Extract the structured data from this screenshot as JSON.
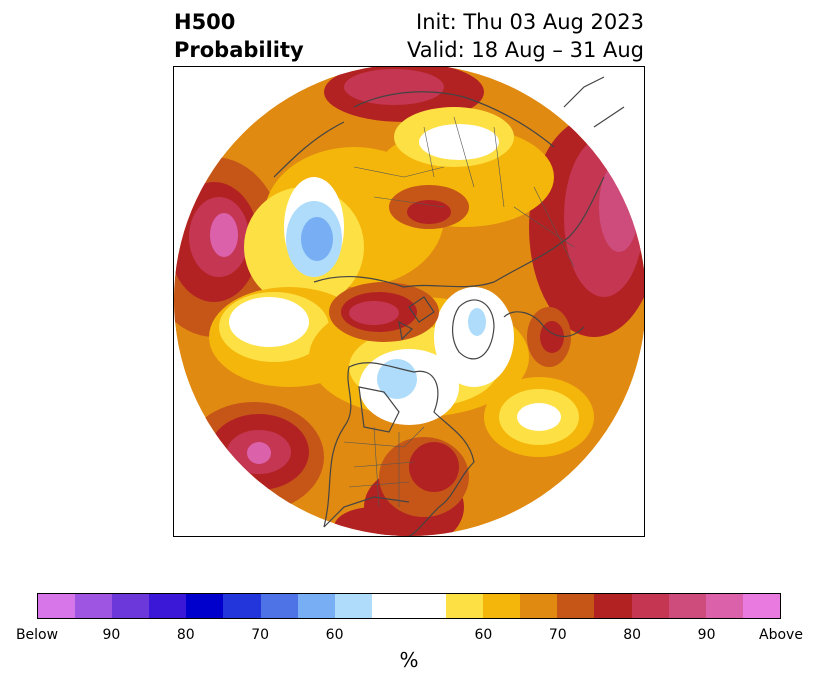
{
  "header": {
    "variable": "H500",
    "product": "Probability",
    "init_label": "Init: Thu 03 Aug 2023",
    "valid_label": "Valid: 18 Aug – 31 Aug"
  },
  "map": {
    "projection": "north-polar-stereographic",
    "background_fill": "#e08a12"
  },
  "colorbar": {
    "unit": "%",
    "colors": [
      "#d676e8",
      "#9e55e2",
      "#6d38da",
      "#3b17d8",
      "#0000cc",
      "#2236dc",
      "#4e73e6",
      "#78aef4",
      "#aedcfa",
      "#ffffff",
      "#ffffff",
      "#fde044",
      "#f4b60a",
      "#e08a12",
      "#c65618",
      "#b22222",
      "#c43652",
      "#cd4c7b",
      "#db61ab",
      "#e87ae0"
    ],
    "ticks": [
      {
        "label": "Below",
        "index": 0
      },
      {
        "label": "90",
        "index": 2
      },
      {
        "label": "80",
        "index": 4
      },
      {
        "label": "70",
        "index": 6
      },
      {
        "label": "60",
        "index": 8
      },
      {
        "label": "60",
        "index": 12
      },
      {
        "label": "70",
        "index": 14
      },
      {
        "label": "80",
        "index": 16
      },
      {
        "label": "90",
        "index": 18
      },
      {
        "label": "Above",
        "index": 20
      }
    ]
  }
}
